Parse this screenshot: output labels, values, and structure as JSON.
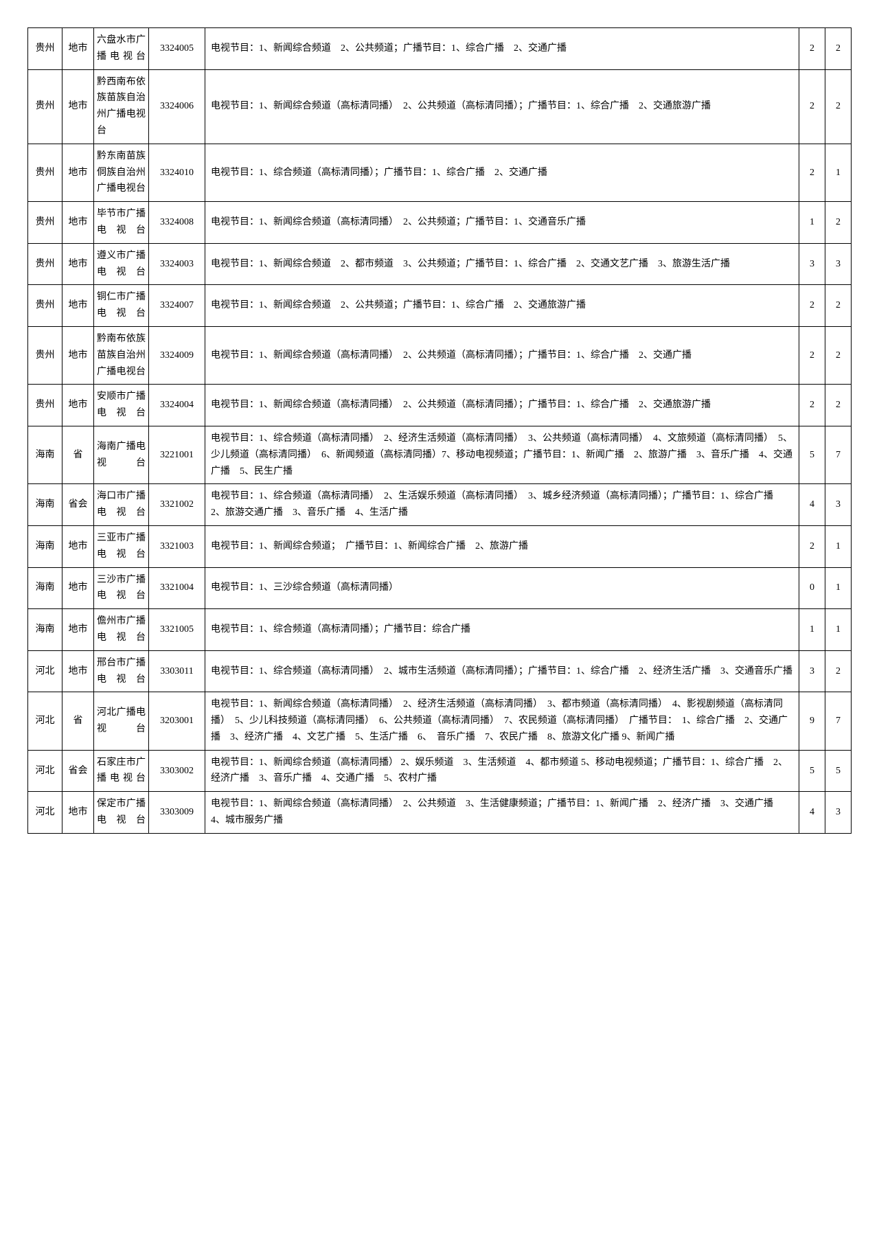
{
  "table": {
    "rows": [
      {
        "province": "贵州",
        "level": "地市",
        "org": "六盘水市广播电视台",
        "code": "3324005",
        "desc": "电视节目：1、新闻综合频道　2、公共频道；广播节目：1、综合广播　2、交通广播",
        "n1": "2",
        "n2": "2"
      },
      {
        "province": "贵州",
        "level": "地市",
        "org": "黔西南布依族苗族自治州广播电视台",
        "code": "3324006",
        "desc": "电视节目：1、新闻综合频道（高标清同播）　2、公共频道（高标清同播）；广播节目：1、综合广播　2、交通旅游广播",
        "n1": "2",
        "n2": "2"
      },
      {
        "province": "贵州",
        "level": "地市",
        "org": "黔东南苗族侗族自治州广播电视台",
        "code": "3324010",
        "desc": "电视节目：1、综合频道（高标清同播）；广播节目：1、综合广播　2、交通广播",
        "n1": "2",
        "n2": "1"
      },
      {
        "province": "贵州",
        "level": "地市",
        "org": "毕节市广播电视台",
        "code": "3324008",
        "desc": "电视节目：1、新闻综合频道（高标清同播）　2、公共频道；广播节目：1、交通音乐广播",
        "n1": "1",
        "n2": "2"
      },
      {
        "province": "贵州",
        "level": "地市",
        "org": "遵义市广播电视台",
        "code": "3324003",
        "desc": "电视节目：1、新闻综合频道　2、都市频道　3、公共频道；广播节目：1、综合广播　2、交通文艺广播　3、旅游生活广播",
        "n1": "3",
        "n2": "3"
      },
      {
        "province": "贵州",
        "level": "地市",
        "org": "铜仁市广播电视台",
        "code": "3324007",
        "desc": "电视节目：1、新闻综合频道　2、公共频道；广播节目：1、综合广播　2、交通旅游广播",
        "n1": "2",
        "n2": "2"
      },
      {
        "province": "贵州",
        "level": "地市",
        "org": "黔南布依族苗族自治州广播电视台",
        "code": "3324009",
        "desc": "电视节目：1、新闻综合频道（高标清同播）　2、公共频道（高标清同播）；广播节目：1、综合广播　2、交通广播",
        "n1": "2",
        "n2": "2"
      },
      {
        "province": "贵州",
        "level": "地市",
        "org": "安顺市广播电视台",
        "code": "3324004",
        "desc": "电视节目：1、新闻综合频道（高标清同播）　2、公共频道（高标清同播）；广播节目：1、综合广播　2、交通旅游广播",
        "n1": "2",
        "n2": "2"
      },
      {
        "province": "海南",
        "level": "省",
        "org": "海南广播电视台",
        "code": "3221001",
        "desc": "电视节目：1、综合频道（高标清同播）　2、经济生活频道（高标清同播）　3、公共频道（高标清同播）　4、文旅频道（高标清同播）　5、少儿频道（高标清同播）　6、新闻频道（高标清同播）7、移动电视频道；广播节目：1、新闻广播　2、旅游广播　3、音乐广播　4、交通广播　5、民生广播",
        "n1": "5",
        "n2": "7"
      },
      {
        "province": "海南",
        "level": "省会",
        "org": "海口市广播电视台",
        "code": "3321002",
        "desc": "电视节目：1、综合频道（高标清同播）　2、生活娱乐频道（高标清同播）　3、城乡经济频道（高标清同播）；广播节目：1、综合广播　2、旅游交通广播　3、音乐广播　4、生活广播",
        "n1": "4",
        "n2": "3"
      },
      {
        "province": "海南",
        "level": "地市",
        "org": "三亚市广播电视台",
        "code": "3321003",
        "desc": "电视节目：1、新闻综合频道；　广播节目：1、新闻综合广播　2、旅游广播",
        "n1": "2",
        "n2": "1"
      },
      {
        "province": "海南",
        "level": "地市",
        "org": "三沙市广播电视台",
        "code": "3321004",
        "desc": "电视节目：1、三沙综合频道（高标清同播）",
        "n1": "0",
        "n2": "1"
      },
      {
        "province": "海南",
        "level": "地市",
        "org": "儋州市广播电视台",
        "code": "3321005",
        "desc": "电视节目：1、综合频道（高标清同播）；广播节目：综合广播",
        "n1": "1",
        "n2": "1"
      },
      {
        "province": "河北",
        "level": "地市",
        "org": "邢台市广播电视台",
        "code": "3303011",
        "desc": "电视节目：1、综合频道（高标清同播）　2、城市生活频道（高标清同播）；广播节目：1、综合广播　2、经济生活广播　3、交通音乐广播",
        "n1": "3",
        "n2": "2"
      },
      {
        "province": "河北",
        "level": "省",
        "org": "河北广播电视台",
        "code": "3203001",
        "desc": "电视节目：1、新闻综合频道（高标清同播）　2、经济生活频道（高标清同播）　3、都市频道（高标清同播）　4、影视剧频道（高标清同播）　5、少儿科技频道（高标清同播）　6、公共频道（高标清同播）　7、农民频道（高标清同播）　广播节目：　1、综合广播　2、交通广播　3、经济广播　4、文艺广播　5、生活广播　6、　音乐广播　7、农民广播　8、旅游文化广播 9、新闻广播",
        "n1": "9",
        "n2": "7"
      },
      {
        "province": "河北",
        "level": "省会",
        "org": "石家庄市广播电视台",
        "code": "3303002",
        "desc": "电视节目：1、新闻综合频道（高标清同播） 2、娱乐频道　3、生活频道　4、都市频道 5、移动电视频道；广播节目：1、综合广播　2、经济广播　3、音乐广播　4、交通广播　5、农村广播",
        "n1": "5",
        "n2": "5"
      },
      {
        "province": "河北",
        "level": "地市",
        "org": "保定市广播电视台",
        "code": "3303009",
        "desc": "电视节目：1、新闻综合频道（高标清同播）　2、公共频道　3、生活健康频道；广播节目：1、新闻广播　2、经济广播　3、交通广播　4、城市服务广播",
        "n1": "4",
        "n2": "3"
      }
    ]
  }
}
